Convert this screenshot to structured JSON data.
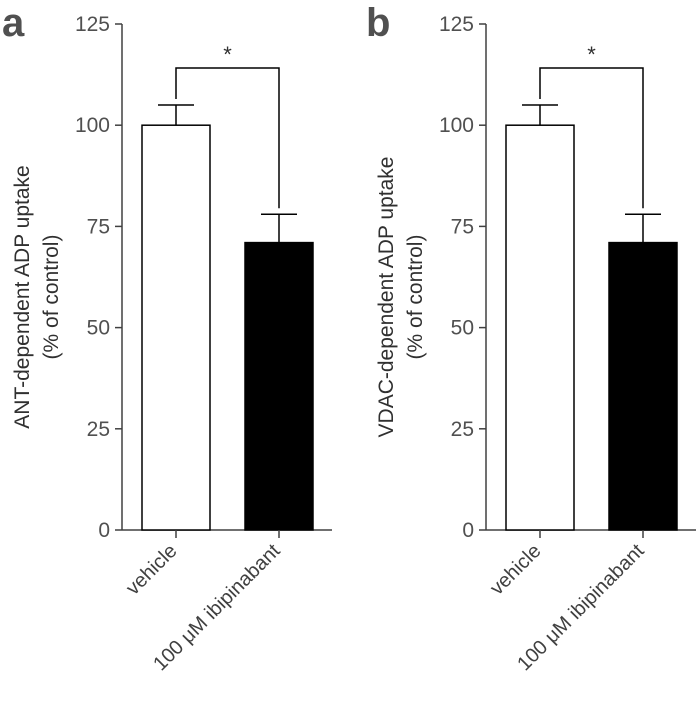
{
  "chart_data": [
    {
      "type": "bar",
      "panel_label": "a",
      "categories": [
        "vehicle",
        "100 μM ibipinabant"
      ],
      "values": [
        100,
        71
      ],
      "errors": [
        5,
        7
      ],
      "bar_colors": [
        "#ffffff",
        "#000000"
      ],
      "ylabel": "ANT-dependent ADP uptake",
      "ylabel_sub": "(% of control)",
      "ylim": [
        0,
        125
      ],
      "yticks": [
        "0",
        "25",
        "50",
        "75",
        "100",
        "125"
      ],
      "significance": "*"
    },
    {
      "type": "bar",
      "panel_label": "b",
      "categories": [
        "vehicle",
        "100 μM ibipinabant"
      ],
      "values": [
        100,
        71
      ],
      "errors": [
        5,
        7
      ],
      "bar_colors": [
        "#ffffff",
        "#000000"
      ],
      "ylabel": "VDAC-dependent ADP uptake",
      "ylabel_sub": "(% of control)",
      "ylim": [
        0,
        125
      ],
      "yticks": [
        "0",
        "25",
        "50",
        "75",
        "100",
        "125"
      ],
      "significance": "*"
    }
  ]
}
